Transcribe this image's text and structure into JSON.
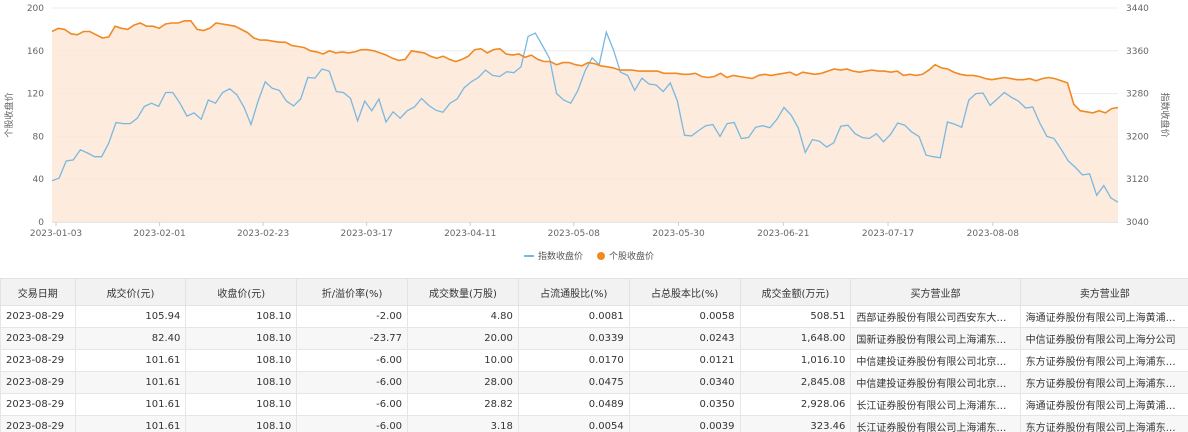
{
  "chart_data": {
    "type": "line",
    "x_tick_labels": [
      "2023-01-03",
      "2023-02-01",
      "2023-02-23",
      "2023-03-17",
      "2023-04-11",
      "2023-05-08",
      "2023-05-30",
      "2023-06-21",
      "2023-07-17",
      "2023-08-08"
    ],
    "y_left": {
      "label": "个股收盘价",
      "ylim": [
        0,
        200
      ],
      "ticks": [
        "0",
        "40",
        "80",
        "120",
        "160",
        "200"
      ]
    },
    "y_right": {
      "label": "指数收盘价",
      "ylim": [
        3040,
        3440
      ],
      "ticks": [
        "3040",
        "3120",
        "3200",
        "3280",
        "3360",
        "3440"
      ]
    },
    "grid": "horizontal",
    "legend_position": "bottom-center",
    "series": [
      {
        "name": "指数收盘价",
        "axis": "right",
        "color": "#7ab8e0",
        "values": [
          3117,
          3122,
          3154,
          3156,
          3175,
          3169,
          3162,
          3162,
          3188,
          3226,
          3224,
          3224,
          3234,
          3256,
          3262,
          3256,
          3282,
          3282,
          3262,
          3238,
          3244,
          3232,
          3268,
          3262,
          3282,
          3289,
          3278,
          3255,
          3222,
          3266,
          3302,
          3290,
          3286,
          3266,
          3257,
          3270,
          3310,
          3309,
          3326,
          3322,
          3284,
          3282,
          3271,
          3229,
          3266,
          3248,
          3270,
          3227,
          3246,
          3234,
          3248,
          3255,
          3271,
          3258,
          3249,
          3245,
          3262,
          3270,
          3291,
          3302,
          3310,
          3324,
          3314,
          3312,
          3321,
          3319,
          3330,
          3387,
          3393,
          3370,
          3346,
          3280,
          3268,
          3262,
          3286,
          3322,
          3347,
          3334,
          3395,
          3362,
          3320,
          3314,
          3286,
          3309,
          3298,
          3296,
          3284,
          3300,
          3266,
          3202,
          3201,
          3211,
          3220,
          3222,
          3200,
          3224,
          3226,
          3196,
          3198,
          3217,
          3220,
          3216,
          3232,
          3254,
          3240,
          3216,
          3170,
          3194,
          3191,
          3180,
          3188,
          3219,
          3221,
          3205,
          3198,
          3196,
          3205,
          3190,
          3204,
          3225,
          3221,
          3208,
          3200,
          3165,
          3162,
          3160,
          3227,
          3223,
          3217,
          3268,
          3280,
          3281,
          3258,
          3270,
          3282,
          3273,
          3266,
          3253,
          3255,
          3225,
          3200,
          3196,
          3176,
          3154,
          3142,
          3128,
          3130,
          3090,
          3108,
          3085,
          3077
        ]
      },
      {
        "name": "个股收盘价",
        "axis": "left",
        "color": "#f08a24",
        "values": [
          178,
          181,
          180,
          176,
          175,
          178,
          178,
          175,
          172,
          173,
          183,
          181,
          180,
          184,
          186,
          183,
          183,
          181,
          185,
          186,
          186,
          188,
          188,
          180,
          179,
          181,
          186,
          185,
          184,
          183,
          180,
          177,
          172,
          170,
          170,
          169,
          168,
          168,
          165,
          164,
          163,
          160,
          159,
          157,
          160,
          158,
          159,
          158,
          159,
          161,
          161,
          160,
          158,
          156,
          153,
          151,
          152,
          160,
          159,
          158,
          155,
          153,
          155,
          152,
          150,
          152,
          155,
          161,
          162,
          158,
          161,
          162,
          157,
          156,
          157,
          154,
          156,
          152,
          150,
          150,
          147,
          149,
          149,
          147,
          146,
          149,
          148,
          146,
          145,
          144,
          142,
          142,
          142,
          141,
          141,
          141,
          141,
          139,
          139,
          139,
          138,
          138,
          139,
          136,
          135,
          136,
          139,
          135,
          137,
          136,
          135,
          134,
          137,
          138,
          137,
          138,
          139,
          140,
          137,
          140,
          139,
          138,
          139,
          141,
          143,
          142,
          143,
          141,
          140,
          141,
          142,
          141,
          141,
          140,
          141,
          137,
          138,
          137,
          138,
          142,
          147,
          144,
          143,
          140,
          138,
          137,
          137,
          136,
          134,
          133,
          134,
          135,
          134,
          133,
          133,
          134,
          132,
          134,
          135,
          134,
          132,
          130,
          110,
          104,
          103,
          102,
          104,
          102,
          106,
          107
        ]
      }
    ]
  },
  "legend": {
    "items": [
      "指数收盘价",
      "个股收盘价"
    ]
  },
  "table": {
    "headers": [
      "交易日期",
      "成交价(元)",
      "收盘价(元)",
      "折/溢价率(%)",
      "成交数量(万股)",
      "占流通股比(%)",
      "占总股本比(%)",
      "成交金额(万元)",
      "买方营业部",
      "卖方营业部"
    ],
    "rows": [
      [
        "2023-08-29",
        "105.94",
        "108.10",
        "-2.00",
        "4.80",
        "0.0081",
        "0.0058",
        "508.51",
        "西部证券股份有限公司西安东大街证券营业部",
        "海通证券股份有限公司上海黄浦区证券营业部"
      ],
      [
        "2023-08-29",
        "82.40",
        "108.10",
        "-23.77",
        "20.00",
        "0.0339",
        "0.0243",
        "1,648.00",
        "国新证券股份有限公司上海浦东新区证券营业部",
        "中信证券股份有限公司上海分公司"
      ],
      [
        "2023-08-29",
        "101.61",
        "108.10",
        "-6.00",
        "10.00",
        "0.0170",
        "0.0121",
        "1,016.10",
        "中信建投证券股份有限公司北京东城区证券营业部",
        "东方证券股份有限公司上海浦东新区证券营业部"
      ],
      [
        "2023-08-29",
        "101.61",
        "108.10",
        "-6.00",
        "28.00",
        "0.0475",
        "0.0340",
        "2,845.08",
        "中信建投证券股份有限公司北京东城区证券营业部",
        "东方证券股份有限公司上海浦东新区证券营业部"
      ],
      [
        "2023-08-29",
        "101.61",
        "108.10",
        "-6.00",
        "28.82",
        "0.0489",
        "0.0350",
        "2,928.06",
        "长江证券股份有限公司上海浦东新区证券营业部",
        "海通证券股份有限公司上海黄浦区证券营业部"
      ],
      [
        "2023-08-29",
        "101.61",
        "108.10",
        "-6.00",
        "3.18",
        "0.0054",
        "0.0039",
        "323.46",
        "长江证券股份有限公司上海浦东新区证券营业部",
        "东方证券股份有限公司上海浦东新区证券营业部"
      ]
    ]
  }
}
